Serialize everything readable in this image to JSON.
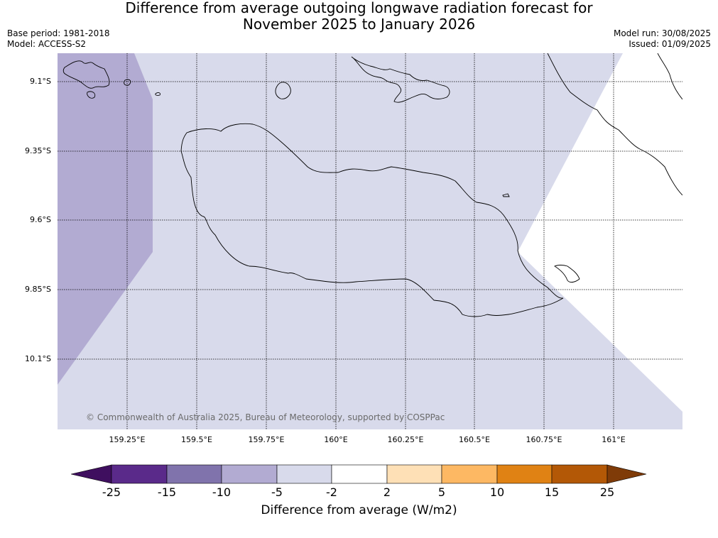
{
  "title_line1": "Difference from average outgoing longwave radiation forecast for",
  "title_line2": "November 2025 to January 2026",
  "base_period": "Base period: 1981-2018",
  "model": "Model: ACCESS-S2",
  "model_run": "Model run: 30/08/2025",
  "issued": "Issued: 01/09/2025",
  "copyright": "© Commonwealth of Australia 2025, Bureau of Meteorology, supported by COSPPac",
  "lat_ticks": [
    "9.1°S",
    "9.35°S",
    "9.6°S",
    "9.85°S",
    "10.1°S"
  ],
  "lon_ticks": [
    "159.25°E",
    "159.5°E",
    "159.75°E",
    "160°E",
    "160.25°E",
    "160.5°E",
    "160.75°E",
    "161°E"
  ],
  "colorbar": {
    "title": "Difference from average (W/m2)",
    "labels": [
      "-25",
      "-15",
      "-10",
      "-5",
      "-2",
      "2",
      "5",
      "10",
      "15",
      "25"
    ],
    "colors": [
      "#3f0f5f",
      "#5a2a8a",
      "#8073ac",
      "#b2abd2",
      "#d8daeb",
      "#ffffff",
      "#fee0b6",
      "#fdb863",
      "#e08214",
      "#b35806",
      "#7f3b08"
    ]
  },
  "fill_colors": {
    "band_minus10_minus5": "#b2abd2",
    "band_minus5_minus2": "#d8daeb",
    "band_minus2_2": "#ffffff"
  }
}
